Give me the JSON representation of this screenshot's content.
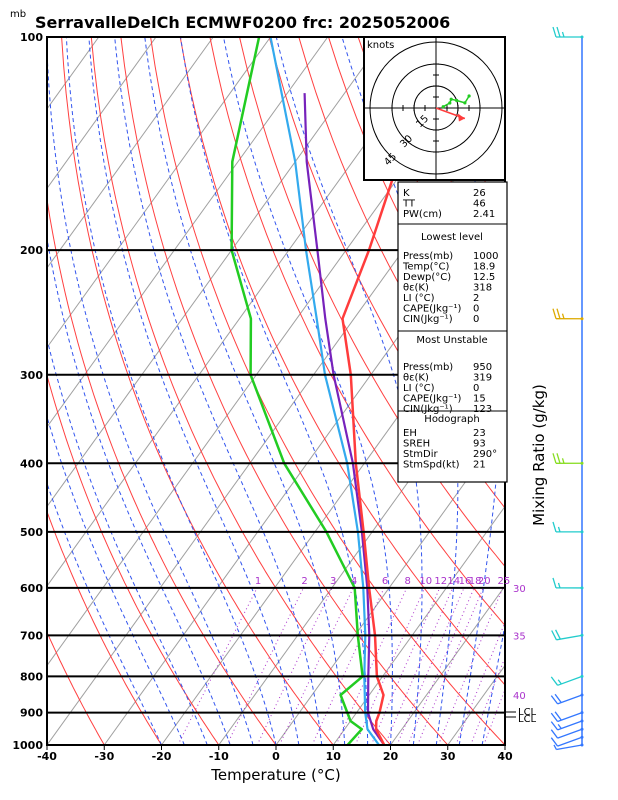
{
  "title": "SerravalleDelCh ECMWF0200 frc: 2025052006",
  "y_unit": "mb",
  "xlabel": "Temperature (°C)",
  "mixing_label": "Mixing Ratio (g/kg)",
  "hodograph": {
    "unit": "knots",
    "ring_labels": [
      "15",
      "30",
      "45"
    ]
  },
  "indices": {
    "top": [
      {
        "label": "K",
        "value": "26"
      },
      {
        "label": "TT",
        "value": "46"
      },
      {
        "label": "PW(cm)",
        "value": "2.41"
      }
    ],
    "lowest": {
      "header": "Lowest level",
      "rows": [
        {
          "label": "Press(mb)",
          "value": "1000"
        },
        {
          "label": "Temp(°C)",
          "value": "18.9"
        },
        {
          "label": "Dewp(°C)",
          "value": "12.5"
        },
        {
          "label": "θε(K)",
          "value": "318"
        },
        {
          "label": "LI (°C)",
          "value": "2"
        },
        {
          "label": "CAPE(Jkg⁻¹)",
          "value": "0"
        },
        {
          "label": "CIN(Jkg⁻¹)",
          "value": "0"
        }
      ]
    },
    "most_unstable": {
      "header": "Most Unstable",
      "rows": [
        {
          "label": "Press(mb)",
          "value": "950"
        },
        {
          "label": "θε(K)",
          "value": "319"
        },
        {
          "label": "LI (°C)",
          "value": "0"
        },
        {
          "label": "CAPE(Jkg⁻¹)",
          "value": "15"
        },
        {
          "label": "CIN(Jkg⁻¹)",
          "value": "123"
        }
      ]
    },
    "hodograph_box": {
      "header": "Hodograph",
      "rows": [
        {
          "label": "EH",
          "value": "23"
        },
        {
          "label": "SREH",
          "value": "93"
        },
        {
          "label": "StmDir",
          "value": "290°"
        },
        {
          "label": "StmSpd(kt)",
          "value": "21"
        }
      ]
    }
  },
  "lcl_labels": [
    "LCL",
    "LCL"
  ],
  "colors": {
    "temperature": "#ff3c3c",
    "dewpoint": "#22cc22",
    "parcel": "#7722bb",
    "parcel2": "#33aaee",
    "isotherm": "#a0a0a0",
    "dry_adiabat": "#ff4040",
    "moist_adiabat": "#3355ee",
    "mixing_ratio": "#aa33cc"
  },
  "chart_data": {
    "type": "skew-t",
    "x": "temperature",
    "xlim": [
      -40,
      40
    ],
    "ylim": [
      1000,
      100
    ],
    "x_ticks": [
      -40,
      -30,
      -20,
      -10,
      0,
      10,
      20,
      30,
      40
    ],
    "pressure_ticks": [
      1000,
      900,
      800,
      700,
      600,
      500,
      400,
      300,
      200,
      100
    ],
    "mixing_ratio_lines": [
      "1",
      "2",
      "3",
      "4",
      "6",
      "8",
      "10",
      "12",
      "14",
      "16",
      "18",
      "20",
      "25",
      "30",
      "35",
      "40"
    ],
    "temperature_profile": [
      {
        "p": 1000,
        "t": 18.9
      },
      {
        "p": 950,
        "t": 15.5
      },
      {
        "p": 925,
        "t": 14.5
      },
      {
        "p": 900,
        "t": 14.0
      },
      {
        "p": 850,
        "t": 12.5
      },
      {
        "p": 800,
        "t": 9.0
      },
      {
        "p": 700,
        "t": 3.5
      },
      {
        "p": 600,
        "t": -3.5
      },
      {
        "p": 500,
        "t": -11.5
      },
      {
        "p": 400,
        "t": -21.5
      },
      {
        "p": 300,
        "t": -33.5
      },
      {
        "p": 250,
        "t": -42.0
      },
      {
        "p": 200,
        "t": -46.0
      },
      {
        "p": 150,
        "t": -52.0
      },
      {
        "p": 100,
        "t": -57.0
      }
    ],
    "dewpoint_profile": [
      {
        "p": 1000,
        "t": 12.5
      },
      {
        "p": 950,
        "t": 13.0
      },
      {
        "p": 925,
        "t": 10.0
      },
      {
        "p": 850,
        "t": 5.0
      },
      {
        "p": 800,
        "t": 6.5
      },
      {
        "p": 700,
        "t": 0.5
      },
      {
        "p": 600,
        "t": -6.0
      },
      {
        "p": 500,
        "t": -18.0
      },
      {
        "p": 400,
        "t": -34.0
      },
      {
        "p": 300,
        "t": -51.0
      },
      {
        "p": 250,
        "t": -58.0
      },
      {
        "p": 200,
        "t": -70.0
      },
      {
        "p": 150,
        "t": -81.0
      },
      {
        "p": 100,
        "t": -92.0
      }
    ],
    "parcel_profile": [
      {
        "p": 1000,
        "t": 18.9
      },
      {
        "p": 950,
        "t": 15.0
      },
      {
        "p": 900,
        "t": 12.0
      },
      {
        "p": 800,
        "t": 7.5
      },
      {
        "p": 700,
        "t": 2.5
      },
      {
        "p": 600,
        "t": -3.8
      },
      {
        "p": 500,
        "t": -11.8
      },
      {
        "p": 400,
        "t": -22.0
      },
      {
        "p": 300,
        "t": -36.5
      },
      {
        "p": 250,
        "t": -45.0
      },
      {
        "p": 200,
        "t": -55.0
      },
      {
        "p": 150,
        "t": -68.0
      },
      {
        "p": 120,
        "t": -77.0
      }
    ],
    "parcel_profile_2": [
      {
        "p": 1000,
        "t": 18.0
      },
      {
        "p": 950,
        "t": 14.0
      },
      {
        "p": 900,
        "t": 11.5
      },
      {
        "p": 800,
        "t": 6.8
      },
      {
        "p": 700,
        "t": 1.8
      },
      {
        "p": 600,
        "t": -4.5
      },
      {
        "p": 500,
        "t": -12.5
      },
      {
        "p": 400,
        "t": -23.0
      },
      {
        "p": 300,
        "t": -38.0
      },
      {
        "p": 250,
        "t": -46.5
      },
      {
        "p": 200,
        "t": -57.0
      },
      {
        "p": 150,
        "t": -70.0
      },
      {
        "p": 100,
        "t": -90.0
      }
    ],
    "wind_barbs": [
      {
        "p": 1000,
        "dir": 260,
        "spd": 5
      },
      {
        "p": 975,
        "dir": 250,
        "spd": 10
      },
      {
        "p": 950,
        "dir": 250,
        "spd": 10
      },
      {
        "p": 925,
        "dir": 250,
        "spd": 15
      },
      {
        "p": 900,
        "dir": 250,
        "spd": 20
      },
      {
        "p": 850,
        "dir": 250,
        "spd": 20
      },
      {
        "p": 800,
        "dir": 250,
        "spd": 15
      },
      {
        "p": 700,
        "dir": 260,
        "spd": 20
      },
      {
        "p": 600,
        "dir": 270,
        "spd": 15
      },
      {
        "p": 500,
        "dir": 270,
        "spd": 15
      },
      {
        "p": 400,
        "dir": 270,
        "spd": 25
      },
      {
        "p": 250,
        "dir": 270,
        "spd": 25
      },
      {
        "p": 100,
        "dir": 270,
        "spd": 25
      }
    ],
    "hodograph_points": [
      {
        "dir": 260,
        "spd": 5
      },
      {
        "dir": 250,
        "spd": 10
      },
      {
        "dir": 240,
        "spd": 12
      },
      {
        "dir": 250,
        "spd": 15
      },
      {
        "dir": 260,
        "spd": 20
      },
      {
        "dir": 250,
        "spd": 24
      }
    ],
    "storm_motion": {
      "dir": 290,
      "spd": 21
    }
  }
}
